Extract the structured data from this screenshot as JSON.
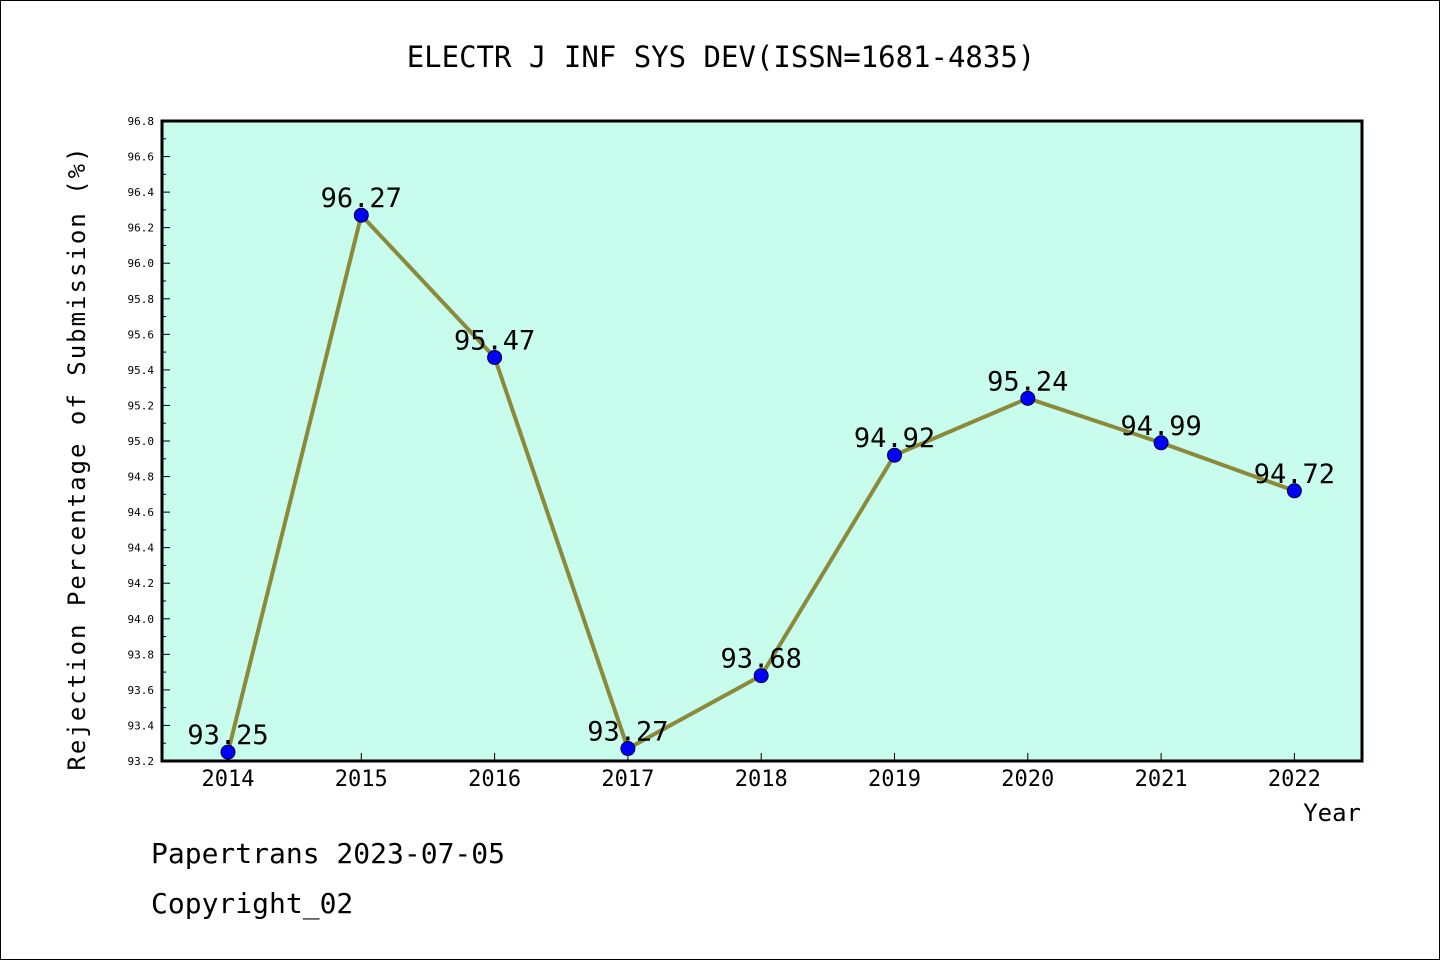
{
  "chart_data": {
    "type": "line",
    "title": "ELECTR J INF SYS DEV(ISSN=1681-4835)",
    "xlabel": "Year",
    "ylabel": "Rejection Percentage of Submission (%)",
    "categories": [
      "2014",
      "2015",
      "2016",
      "2017",
      "2018",
      "2019",
      "2020",
      "2021",
      "2022"
    ],
    "series": [
      {
        "values": [
          93.25,
          96.27,
          95.47,
          93.27,
          93.68,
          94.92,
          95.24,
          94.99,
          94.72
        ]
      }
    ],
    "data_labels": [
      "93.25",
      "96.27",
      "95.47",
      "93.27",
      "93.68",
      "94.92",
      "95.24",
      "94.99",
      "94.72"
    ],
    "ylim": [
      93.2,
      96.8
    ],
    "y_ticks": [
      "93.2",
      "93.4",
      "93.6",
      "93.8",
      "94.0",
      "94.2",
      "94.4",
      "94.6",
      "94.8",
      "95.0",
      "95.2",
      "95.4",
      "95.6",
      "95.8",
      "96.0",
      "96.2",
      "96.4",
      "96.6",
      "96.8"
    ],
    "grid": false,
    "colors": {
      "plot_background": "#c8fced",
      "line": "#8b8a3a",
      "marker": "#0000ff"
    }
  },
  "footer": {
    "line1": "Papertrans 2023-07-05",
    "line2": "Copyright_02"
  }
}
